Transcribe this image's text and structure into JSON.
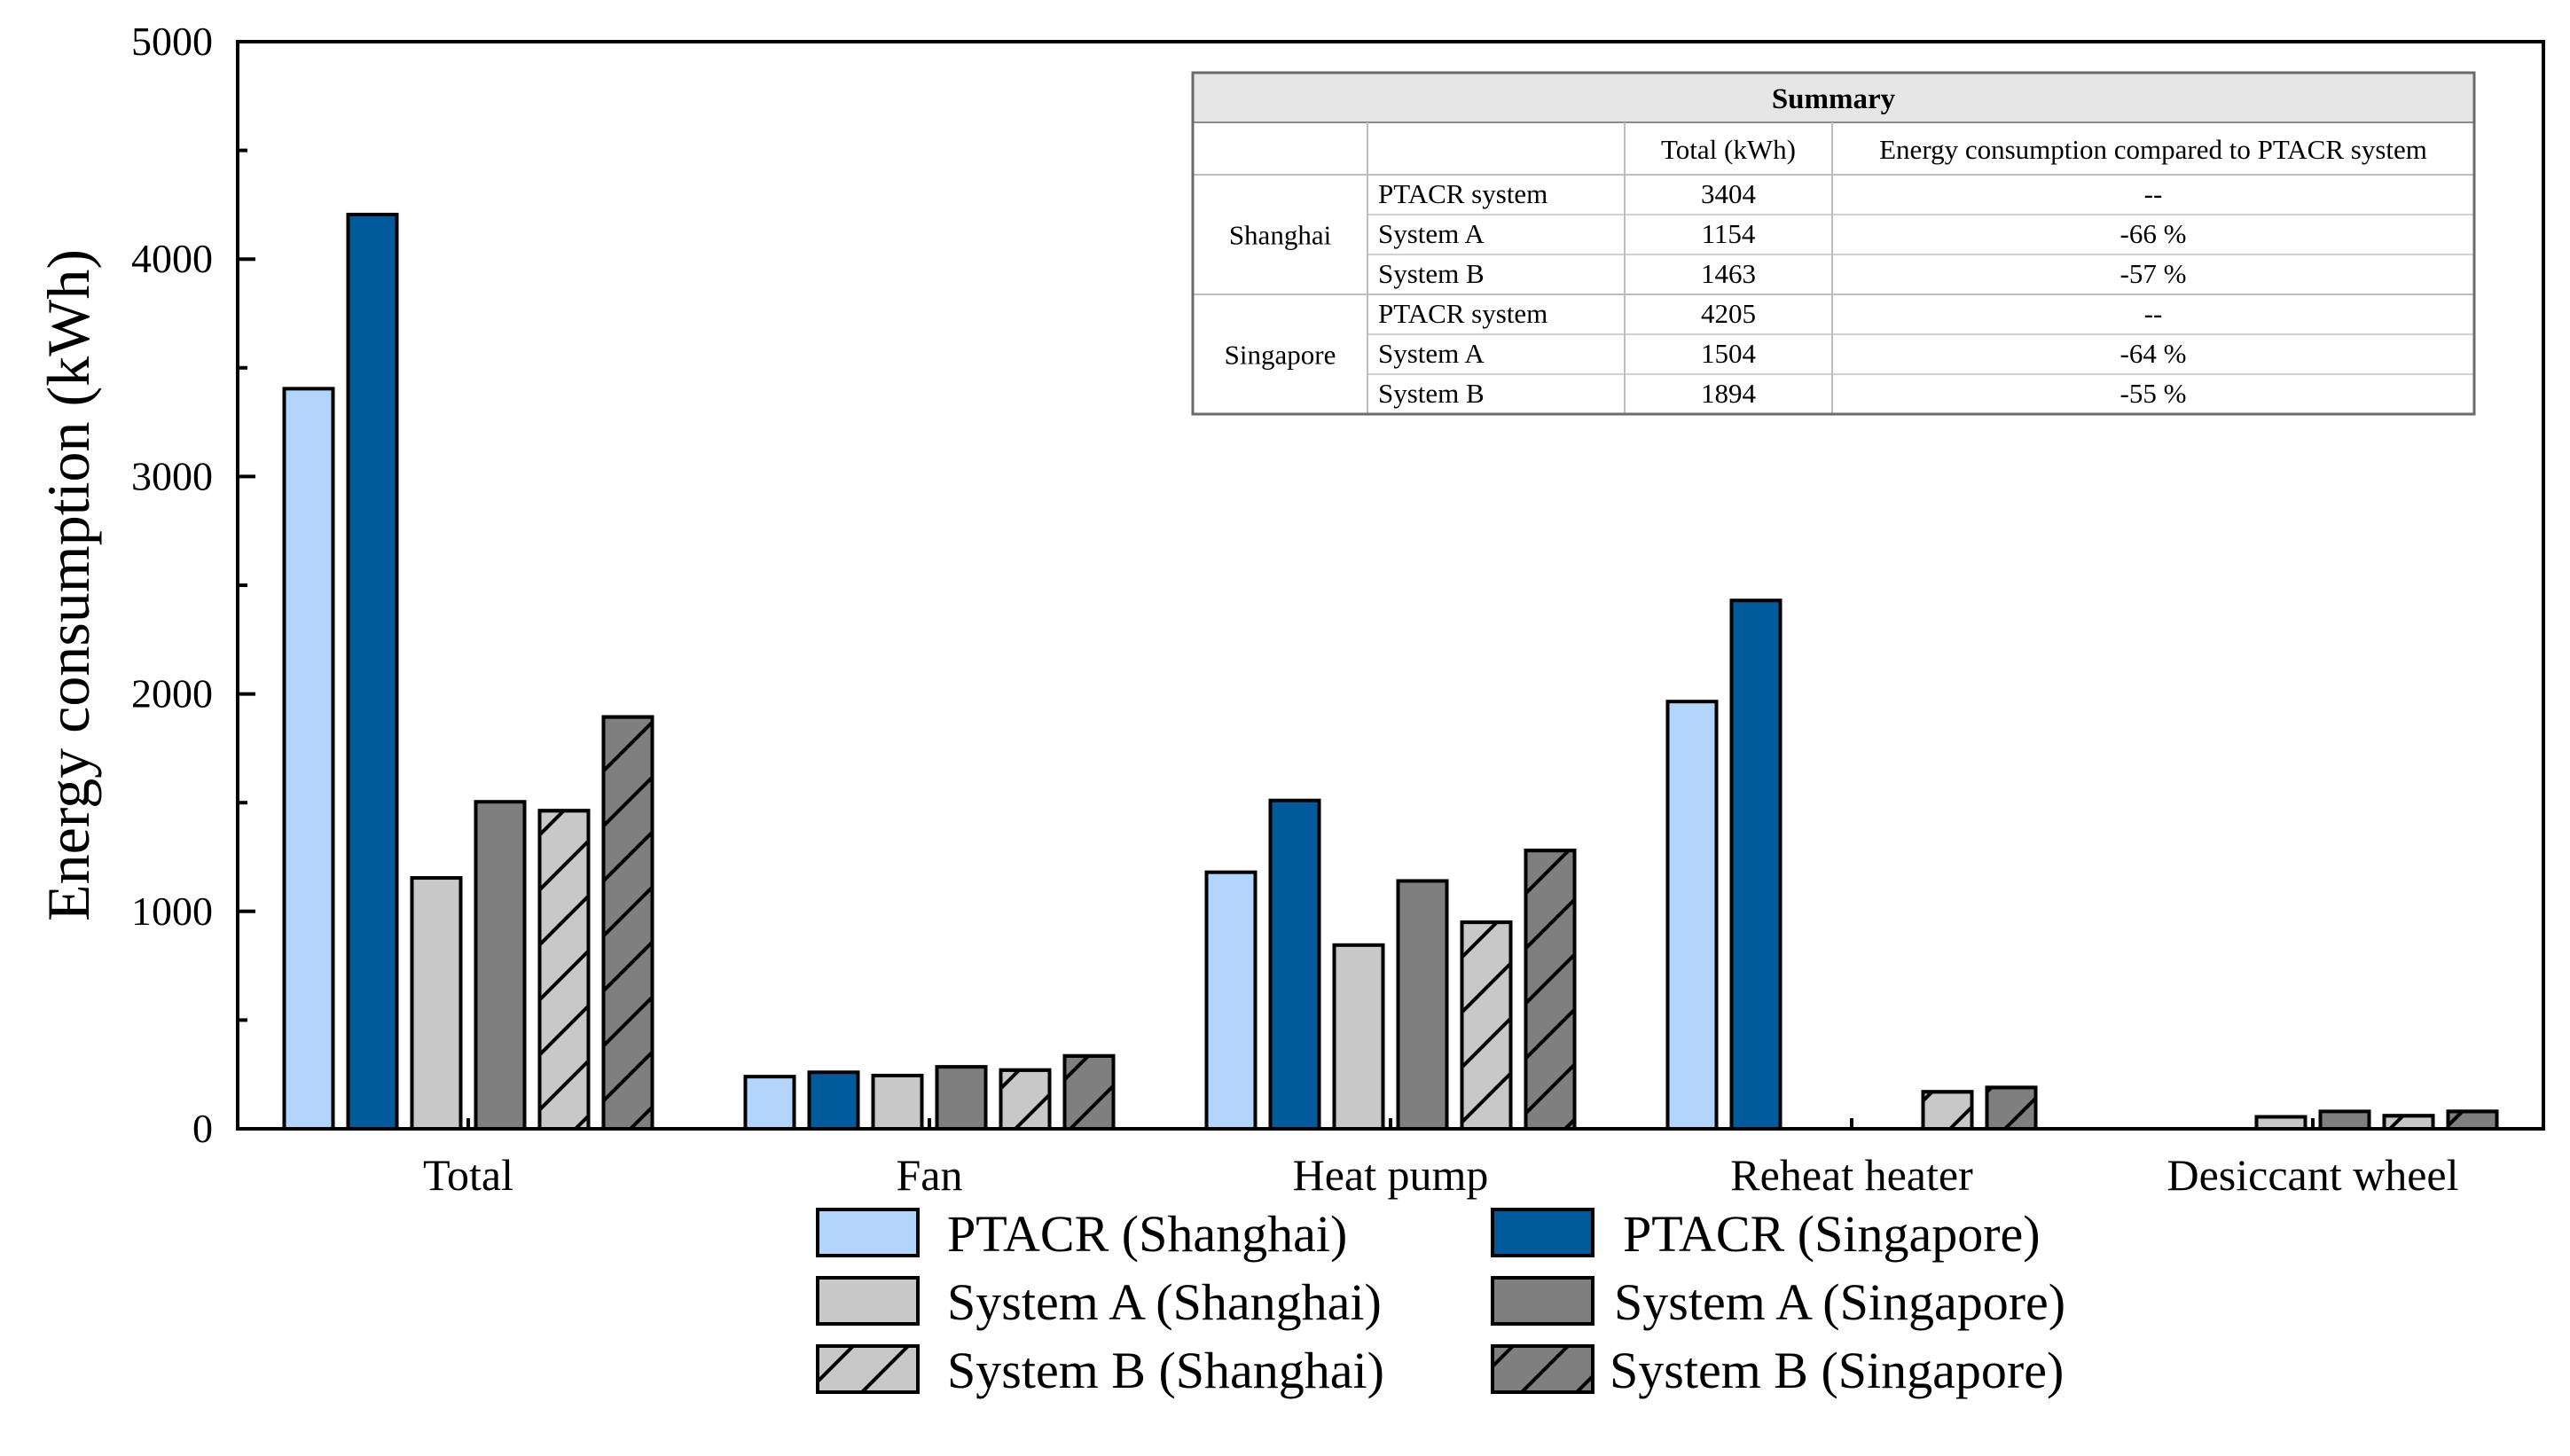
{
  "chart_data": {
    "type": "bar",
    "title": "",
    "xlabel": "",
    "ylabel": "Energy consumption (kWh)",
    "ylim": [
      0,
      5000
    ],
    "yticks": [
      0,
      1000,
      2000,
      3000,
      4000,
      5000
    ],
    "categories": [
      "Total",
      "Fan",
      "Heat pump",
      "Reheat heater",
      "Desiccant wheel"
    ],
    "series": [
      {
        "name": "PTACR (Shanghai)",
        "color": "#b3d5fb",
        "hatch": false,
        "values": [
          3404,
          240,
          1180,
          1965,
          0
        ]
      },
      {
        "name": "PTACR (Singapore)",
        "color": "#005a9c",
        "hatch": false,
        "values": [
          4205,
          260,
          1510,
          2430,
          0
        ]
      },
      {
        "name": "System A (Shanghai)",
        "color": "#c8c8c8",
        "hatch": false,
        "values": [
          1154,
          245,
          845,
          0,
          55
        ]
      },
      {
        "name": "System A (Singapore)",
        "color": "#7f7f7f",
        "hatch": false,
        "values": [
          1504,
          285,
          1140,
          0,
          80
        ]
      },
      {
        "name": "System B (Shanghai)",
        "color": "#c8c8c8",
        "hatch": true,
        "values": [
          1463,
          270,
          950,
          170,
          60
        ]
      },
      {
        "name": "System B (Singapore)",
        "color": "#7f7f7f",
        "hatch": true,
        "values": [
          1894,
          335,
          1280,
          190,
          80
        ]
      }
    ],
    "legend": {
      "placement": "bottom"
    },
    "summary_table": {
      "title": "Summary",
      "headers": [
        "",
        "",
        "Total (kWh)",
        "Energy consumption compared to PTACR system"
      ],
      "groups": [
        {
          "city": "Shanghai",
          "rows": [
            {
              "system": "PTACR system",
              "total": "3404",
              "compared": "--"
            },
            {
              "system": "System A",
              "total": "1154",
              "compared": "-66 %"
            },
            {
              "system": "System B",
              "total": "1463",
              "compared": "-57 %"
            }
          ]
        },
        {
          "city": "Singapore",
          "rows": [
            {
              "system": "PTACR system",
              "total": "4205",
              "compared": "--"
            },
            {
              "system": "System A",
              "total": "1504",
              "compared": "-64 %"
            },
            {
              "system": "System B",
              "total": "1894",
              "compared": "-55 %"
            }
          ]
        }
      ]
    }
  }
}
